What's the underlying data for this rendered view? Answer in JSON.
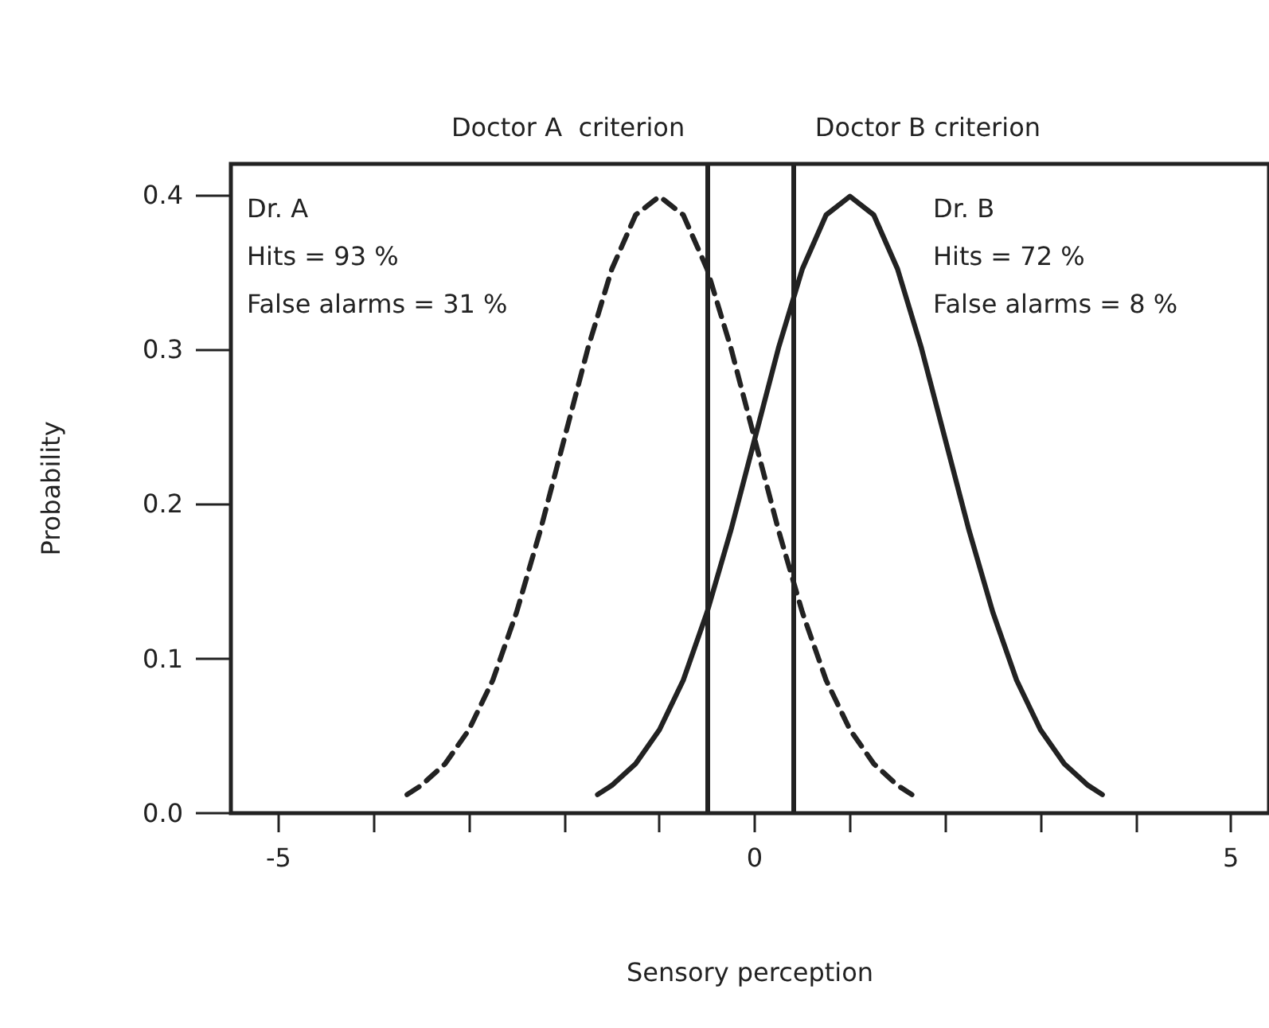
{
  "chart_data": {
    "type": "line",
    "xlabel": "Sensory perception",
    "ylabel": "Probability",
    "xlim": [
      -5.5,
      5.4
    ],
    "ylim": [
      0,
      0.42
    ],
    "xticks": [
      -5,
      {
        "value": -4,
        "label": null
      },
      {
        "value": -3,
        "label": null
      },
      {
        "value": -2,
        "label": null
      },
      {
        "value": -1,
        "label": null
      },
      0,
      {
        "value": 1,
        "label": null
      },
      {
        "value": 2,
        "label": null
      },
      {
        "value": 3,
        "label": null
      },
      {
        "value": 4,
        "label": null
      },
      5
    ],
    "yticks": [
      {
        "value": 0,
        "label": "0.0"
      },
      0.1,
      0.2,
      0.3,
      0.4
    ],
    "grid": false,
    "marker": "none",
    "series": [
      {
        "color": "#222222",
        "line_style": "dashed",
        "x": [
          -3.65,
          -3.5,
          -3.25,
          -3,
          -2.75,
          -2.5,
          -2.25,
          -2,
          -1.75,
          -1.5,
          -1.25,
          -1,
          -0.75,
          -0.5,
          -0.25,
          0,
          0.25,
          0.5,
          0.75,
          1,
          1.25,
          1.5,
          1.65
        ],
        "values": [
          0.012,
          0.018,
          0.032,
          0.054,
          0.086,
          0.13,
          0.183,
          0.242,
          0.301,
          0.352,
          0.387,
          0.399,
          0.387,
          0.352,
          0.301,
          0.242,
          0.183,
          0.13,
          0.086,
          0.054,
          0.032,
          0.018,
          0.012
        ]
      },
      {
        "color": "#222222",
        "line_style": "solid",
        "x": [
          -1.65,
          -1.5,
          -1.25,
          -1,
          -0.75,
          -0.5,
          -0.25,
          0,
          0.25,
          0.5,
          0.75,
          1,
          1.25,
          1.5,
          1.75,
          2,
          2.25,
          2.5,
          2.75,
          3,
          3.25,
          3.5,
          3.65
        ],
        "values": [
          0.012,
          0.018,
          0.032,
          0.054,
          0.086,
          0.13,
          0.183,
          0.242,
          0.301,
          0.352,
          0.387,
          0.399,
          0.387,
          0.352,
          0.301,
          0.242,
          0.183,
          0.13,
          0.086,
          0.054,
          0.032,
          0.018,
          0.012
        ]
      }
    ],
    "ref_lines": [
      {
        "axis": "x",
        "value": -0.5,
        "label": "Doctor A  criterion",
        "color": "#222222"
      },
      {
        "axis": "x",
        "value": 0.4,
        "label": "Doctor B criterion",
        "color": "#222222"
      }
    ],
    "annotations": [
      "Dr. A\nHits = 93 %\nFalse alarms = 31 %",
      "Dr. B\nHits = 72 %\nFalse alarms = 8 %"
    ]
  }
}
